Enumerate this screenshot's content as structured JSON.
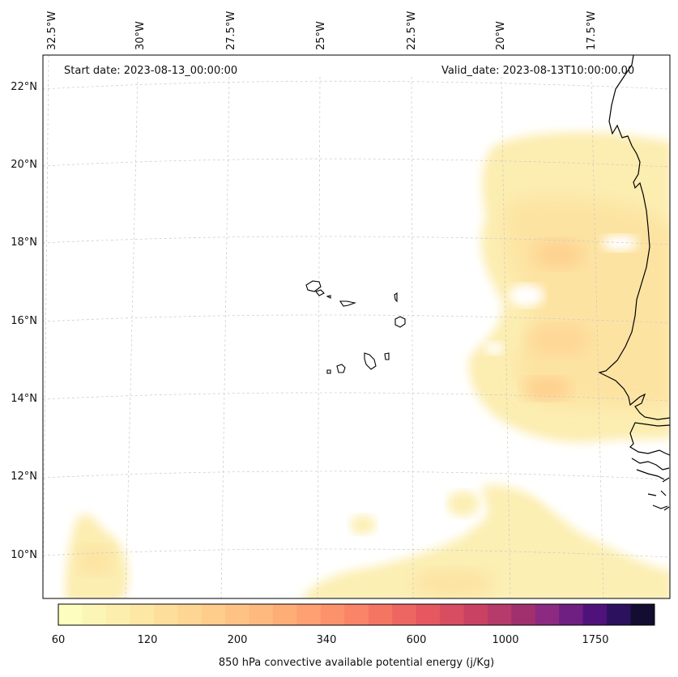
{
  "map": {
    "start_date": "Start date: 2023-08-13_00:00:00",
    "valid_date": "Valid_date: 2023-08-13T10:00:00.00",
    "lon_labels": [
      "32.5°W",
      "30°W",
      "27.5°W",
      "25°W",
      "22.5°W",
      "20°W",
      "17.5°W"
    ],
    "lat_labels": [
      "22°N",
      "20°N",
      "18°N",
      "16°N",
      "14°N",
      "12°N",
      "10°N"
    ],
    "regions": [
      "Cape Verde islands",
      "West African coast (Senegal/Mauritania)"
    ]
  },
  "colorbar": {
    "title": "850 hPa convective available potential energy (j/Kg)",
    "tick_labels": [
      "60",
      "120",
      "200",
      "340",
      "600",
      "1000",
      "1750"
    ],
    "colors": [
      "#fcfdbf",
      "#fcf6b6",
      "#fcefad",
      "#fde7a4",
      "#fddf9b",
      "#fed693",
      "#fecd8b",
      "#fec384",
      "#feb97e",
      "#fead77",
      "#fea071",
      "#fc926c",
      "#f98467",
      "#f57563",
      "#ee6661",
      "#e5585f",
      "#d94d61",
      "#c94264",
      "#b63a6a",
      "#a1306f",
      "#8c2981",
      "#6f1f81",
      "#4f127b",
      "#2c115f",
      "#120d31"
    ],
    "boundaries": [
      60,
      120,
      200,
      340,
      600,
      1000,
      1750
    ]
  }
}
